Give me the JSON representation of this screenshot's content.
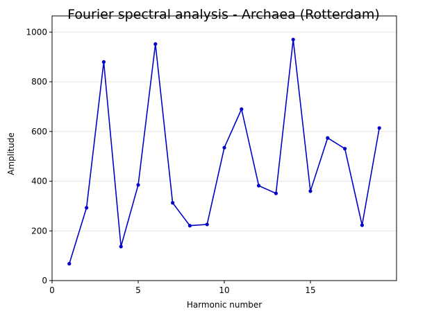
{
  "chart_data": {
    "type": "line",
    "title": "Fourier spectral analysis - Archaea (Rotterdam)",
    "xlabel": "Harmonic number",
    "ylabel": "Amplitude",
    "xlim": [
      0,
      20
    ],
    "ylim": [
      0,
      1065
    ],
    "xticks": [
      0,
      5,
      10,
      15
    ],
    "yticks": [
      0,
      200,
      400,
      600,
      800,
      1000
    ],
    "grid": "horizontal",
    "legend": "none",
    "series": [
      {
        "color": "#0000c8",
        "x": [
          1,
          2,
          3,
          4,
          5,
          6,
          7,
          8,
          9,
          10,
          11,
          12,
          13,
          14,
          15,
          16,
          17,
          18,
          19
        ],
        "y": [
          68,
          293,
          880,
          137,
          385,
          952,
          313,
          221,
          226,
          535,
          690,
          382,
          351,
          970,
          360,
          574,
          531,
          223,
          614
        ]
      }
    ]
  }
}
